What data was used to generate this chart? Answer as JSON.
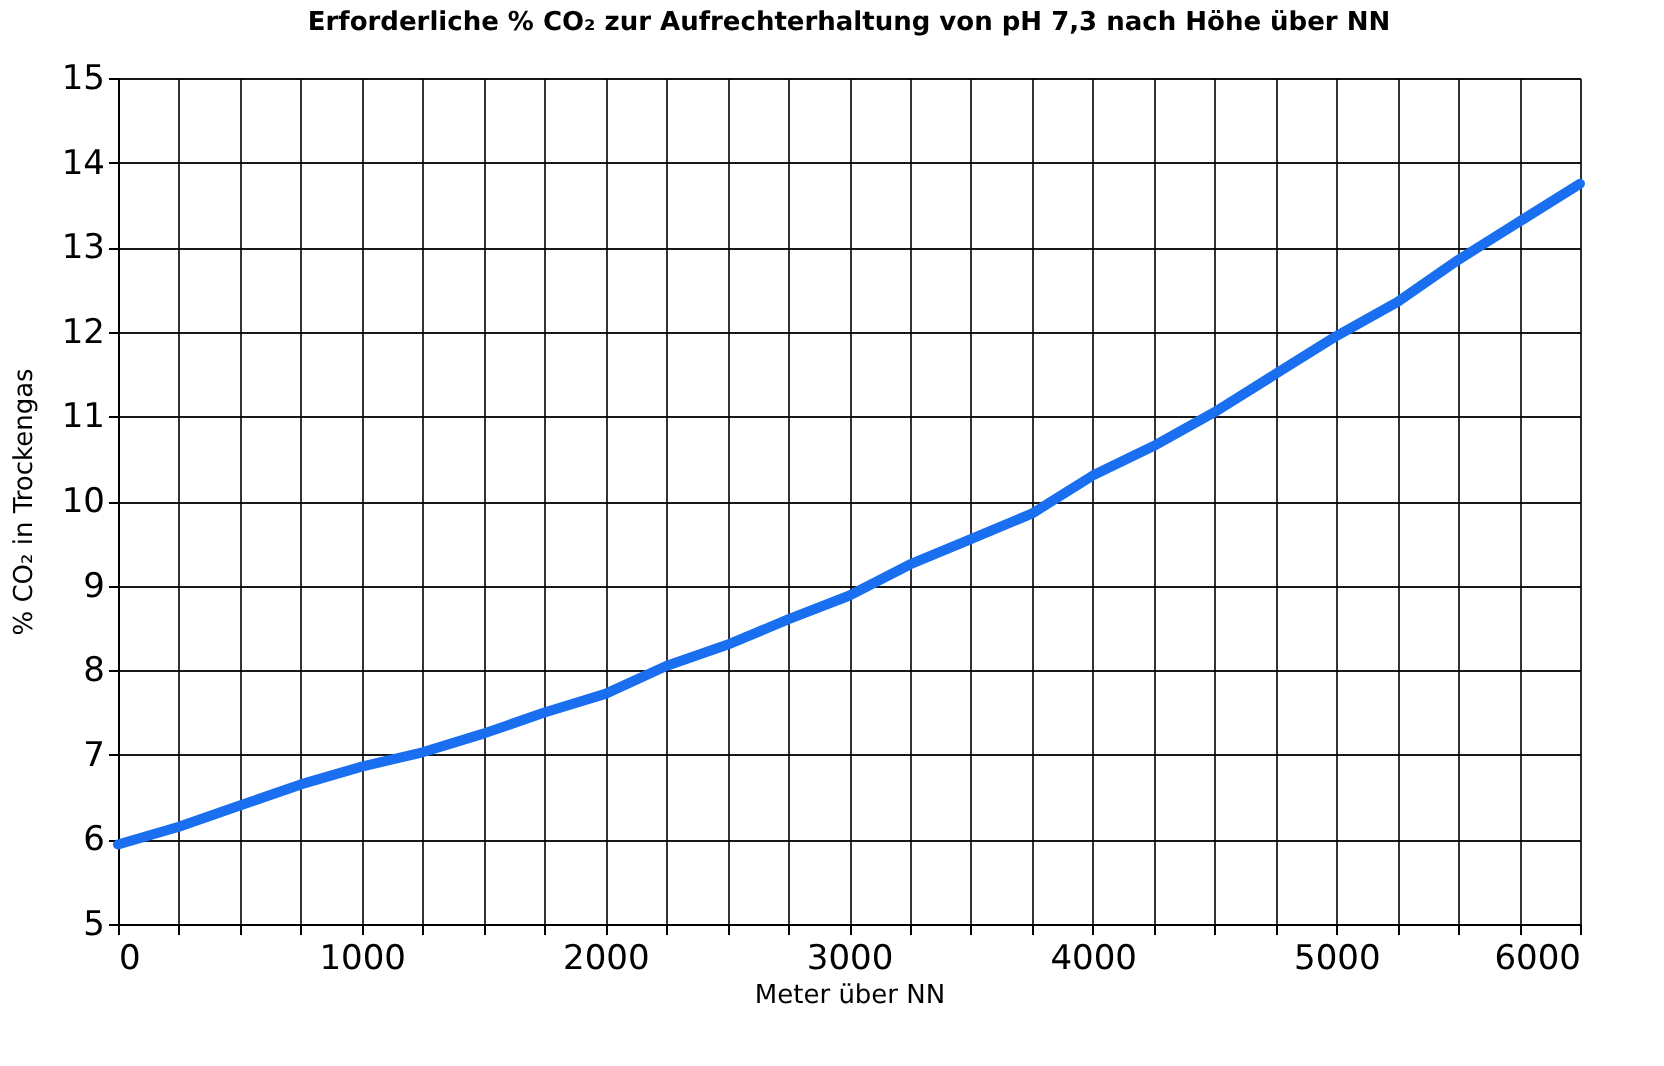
{
  "chart_data": {
    "type": "line",
    "title": "Erforderliche % CO₂ zur Aufrechterhaltung von pH 7,3 nach Höhe über NN",
    "xlabel": "Meter über NN",
    "ylabel": "% CO₂ in Trockengas",
    "x": [
      0,
      250,
      500,
      750,
      1000,
      1250,
      1500,
      1750,
      2000,
      2250,
      2500,
      2750,
      3000,
      3250,
      3500,
      3750,
      4000,
      4250,
      4500,
      4750,
      5000,
      5250,
      5500,
      5750,
      6000
    ],
    "series": [
      {
        "color": "#1a6ff0",
        "values": [
          5.94,
          6.15,
          6.4,
          6.65,
          6.86,
          7.03,
          7.25,
          7.5,
          7.72,
          8.05,
          8.3,
          8.6,
          8.88,
          9.25,
          9.55,
          9.85,
          10.3,
          10.65,
          11.05,
          11.5,
          11.95,
          12.35,
          12.85,
          13.3,
          13.75
        ]
      }
    ],
    "xlim": [
      0,
      6000
    ],
    "ylim": [
      5,
      15
    ],
    "xticks": [
      0,
      {
        "value": 250,
        "label": null
      },
      {
        "value": 500,
        "label": null
      },
      {
        "value": 750,
        "label": null
      },
      1000,
      {
        "value": 1250,
        "label": null
      },
      {
        "value": 1500,
        "label": null
      },
      {
        "value": 1750,
        "label": null
      },
      2000,
      {
        "value": 2250,
        "label": null
      },
      {
        "value": 2500,
        "label": null
      },
      {
        "value": 2750,
        "label": null
      },
      3000,
      {
        "value": 3250,
        "label": null
      },
      {
        "value": 3500,
        "label": null
      },
      {
        "value": 3750,
        "label": null
      },
      4000,
      {
        "value": 4250,
        "label": null
      },
      {
        "value": 4500,
        "label": null
      },
      {
        "value": 4750,
        "label": null
      },
      5000,
      {
        "value": 5250,
        "label": null
      },
      {
        "value": 5500,
        "label": null
      },
      {
        "value": 5750,
        "label": null
      },
      6000
    ],
    "yticks": [
      5,
      6,
      7,
      8,
      9,
      10,
      11,
      12,
      13,
      14,
      15
    ],
    "grid": true,
    "legend": false,
    "marker": "none",
    "line_style": "solid"
  }
}
